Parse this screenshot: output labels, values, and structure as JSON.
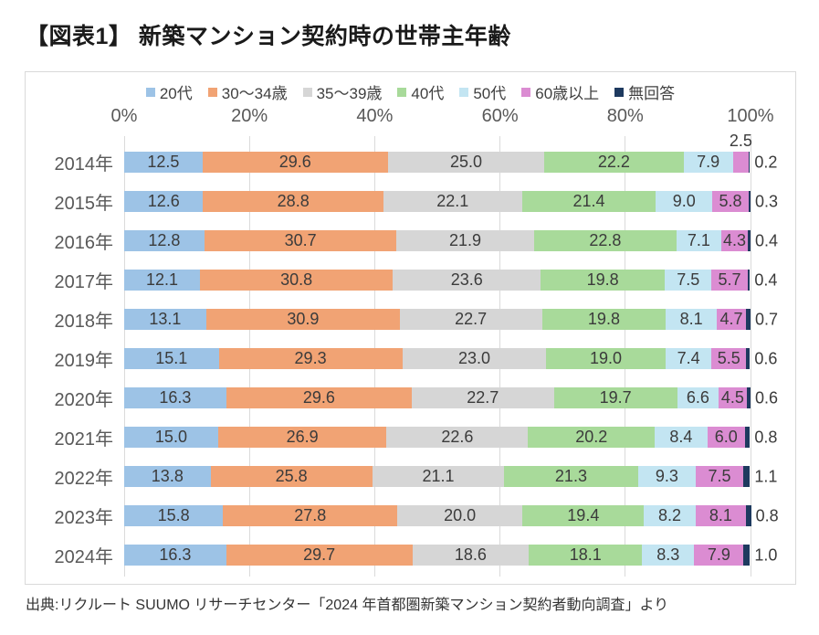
{
  "page": {
    "title": "【図表1】 新築マンション契約時の世帯主年齢",
    "source_note": "出典:リクルート SUUMO リサーチセンター「2024 年首都圏新築マンション契約者動向調査」より"
  },
  "colors": {
    "panel_border": "#d9d9d9",
    "gridline": "#dadada",
    "axis_text": "#595959",
    "value_text": "#3b3b3b",
    "title_text": "#1a1a1a"
  },
  "chart_data": {
    "type": "bar",
    "stacked": true,
    "orientation": "horizontal",
    "value_unit": "%",
    "legend_position": "top",
    "x_axis": {
      "ticks": [
        "0%",
        "20%",
        "40%",
        "60%",
        "80%",
        "100%"
      ],
      "range": [
        0,
        100
      ],
      "grid": true
    },
    "categories": [
      "2014年",
      "2015年",
      "2016年",
      "2017年",
      "2018年",
      "2019年",
      "2020年",
      "2021年",
      "2022年",
      "2023年",
      "2024年"
    ],
    "series": [
      {
        "name": "20代",
        "color": "#9dc3e6",
        "label_position": "inside",
        "values": [
          12.5,
          12.6,
          12.8,
          12.1,
          13.1,
          15.1,
          16.3,
          15.0,
          13.8,
          15.8,
          16.3
        ]
      },
      {
        "name": "30〜34歳",
        "color": "#f1a374",
        "label_position": "inside",
        "values": [
          29.6,
          28.8,
          30.7,
          30.8,
          30.9,
          29.3,
          29.6,
          26.9,
          25.8,
          27.8,
          29.7
        ]
      },
      {
        "name": "35〜39歳",
        "color": "#d6d6d6",
        "label_position": "inside",
        "values": [
          25.0,
          22.1,
          21.9,
          23.6,
          22.7,
          23.0,
          22.7,
          22.6,
          21.1,
          20.0,
          18.6
        ]
      },
      {
        "name": "40代",
        "color": "#a8da9a",
        "label_position": "inside",
        "values": [
          22.2,
          21.4,
          22.8,
          19.8,
          19.8,
          19.0,
          19.7,
          20.2,
          21.3,
          19.4,
          18.1
        ]
      },
      {
        "name": "50代",
        "color": "#c3e5f2",
        "label_position": "inside",
        "values": [
          7.9,
          9.0,
          7.1,
          7.5,
          8.1,
          7.4,
          6.6,
          8.4,
          9.3,
          8.2,
          8.3
        ]
      },
      {
        "name": "60歳以上",
        "color": "#db8cd2",
        "label_position": "inside",
        "values": [
          2.5,
          5.8,
          4.3,
          5.7,
          4.7,
          5.5,
          4.5,
          6.0,
          7.5,
          8.1,
          7.9
        ]
      },
      {
        "name": "無回答",
        "color": "#1e3a5f",
        "label_position": "outside",
        "values": [
          0.2,
          0.3,
          0.4,
          0.4,
          0.7,
          0.6,
          0.6,
          0.8,
          1.1,
          0.8,
          1.0
        ]
      }
    ],
    "label_overrides": [
      {
        "series": "60歳以上",
        "category": "2014年",
        "position": "above"
      }
    ]
  }
}
